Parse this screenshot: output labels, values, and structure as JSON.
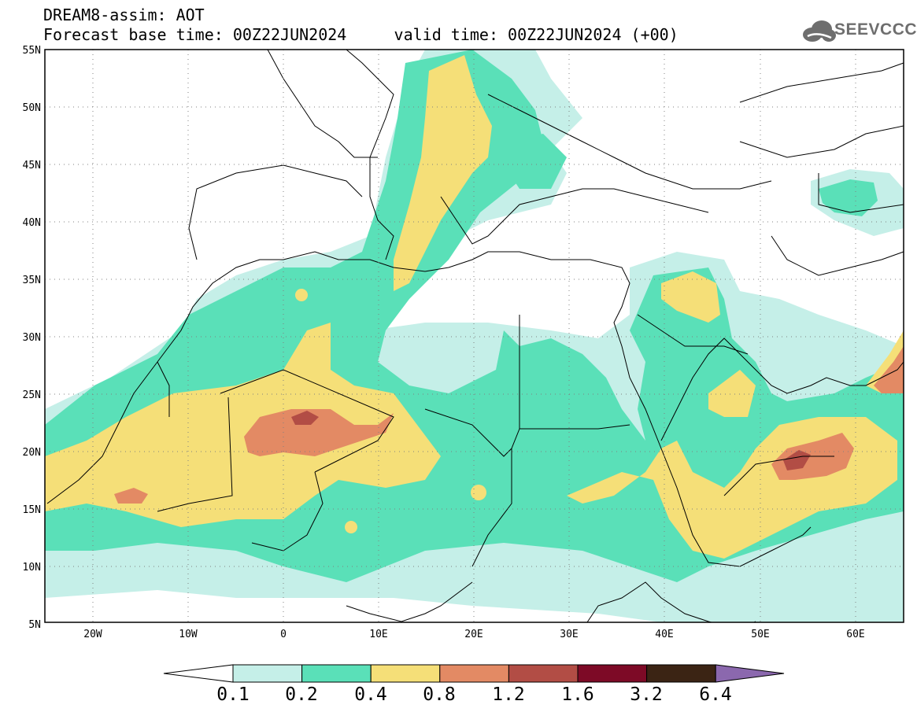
{
  "header": {
    "title": "DREAM8-assim: AOT",
    "base_time": "Forecast base time: 00Z22JUN2024",
    "valid_time": "valid time: 00Z22JUN2024 (+00)"
  },
  "logo": {
    "text": "SEEVCCC",
    "icon": "cloud-icon"
  },
  "map": {
    "lon_range": [
      -25,
      65
    ],
    "lat_range": [
      5,
      55
    ],
    "lat_labels": [
      "55N",
      "50N",
      "45N",
      "40N",
      "35N",
      "30N",
      "25N",
      "20N",
      "15N",
      "10N",
      "5N"
    ],
    "lon_labels": [
      "20W",
      "10W",
      "0",
      "10E",
      "20E",
      "30E",
      "40E",
      "50E",
      "60E"
    ]
  },
  "colors": {
    "c1": "#c5efe8",
    "c2": "#5ae0b8",
    "c3": "#f5df78",
    "c4": "#e38a64",
    "c5": "#b24d45",
    "c6": "#7d0a26",
    "c7": "#3b2414",
    "c8": "#8b68ae"
  },
  "colorbar": {
    "labels": [
      "0.1",
      "0.2",
      "0.4",
      "0.8",
      "1.2",
      "1.6",
      "3.2",
      "6.4"
    ],
    "colors": [
      "#c5efe8",
      "#5ae0b8",
      "#f5df78",
      "#e38a64",
      "#b24d45",
      "#7d0a26",
      "#3b2414"
    ],
    "under_color": "#ffffff",
    "over_color": "#8b68ae"
  }
}
